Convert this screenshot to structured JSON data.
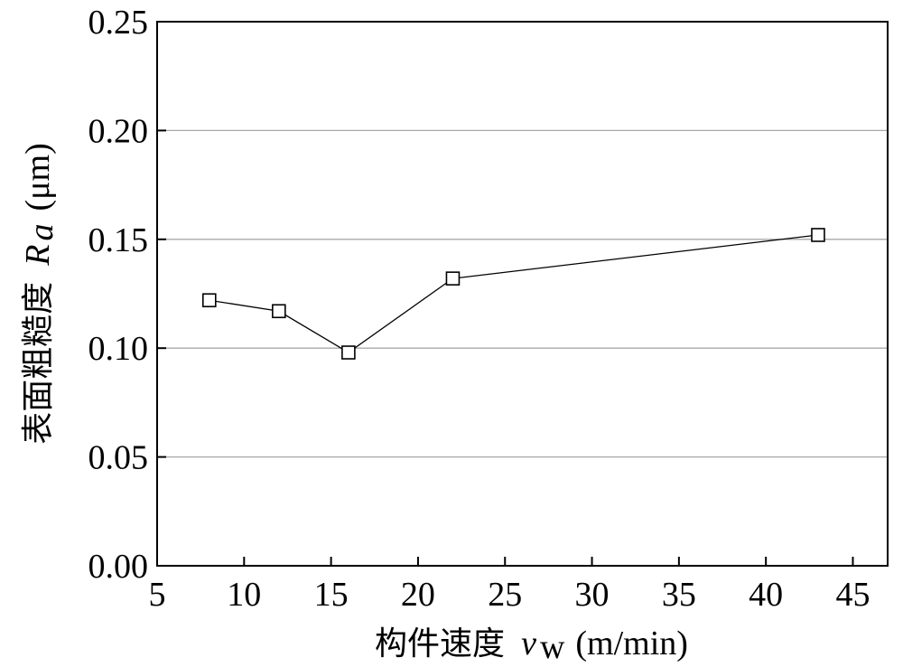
{
  "chart_data": {
    "type": "line",
    "title": "",
    "xlabel": {
      "text": "构件速度",
      "symbol": "v",
      "subscript": "w",
      "unit": "(m/min)"
    },
    "ylabel": {
      "text": "表面粗糙度",
      "symbol": "R",
      "subscript": "a",
      "unit": "(μm)"
    },
    "xlim": [
      5,
      47
    ],
    "ylim": [
      0,
      0.25
    ],
    "xticks": [
      5,
      10,
      15,
      20,
      25,
      30,
      35,
      40,
      45
    ],
    "yticks": [
      "0.00",
      "0.05",
      "0.10",
      "0.15",
      "0.20",
      "0.25"
    ],
    "grid": "horizontal",
    "series": [
      {
        "name": "Ra",
        "marker": "open-square",
        "x": [
          8,
          12,
          16,
          22,
          43
        ],
        "y": [
          0.122,
          0.117,
          0.098,
          0.132,
          0.152
        ]
      }
    ]
  }
}
